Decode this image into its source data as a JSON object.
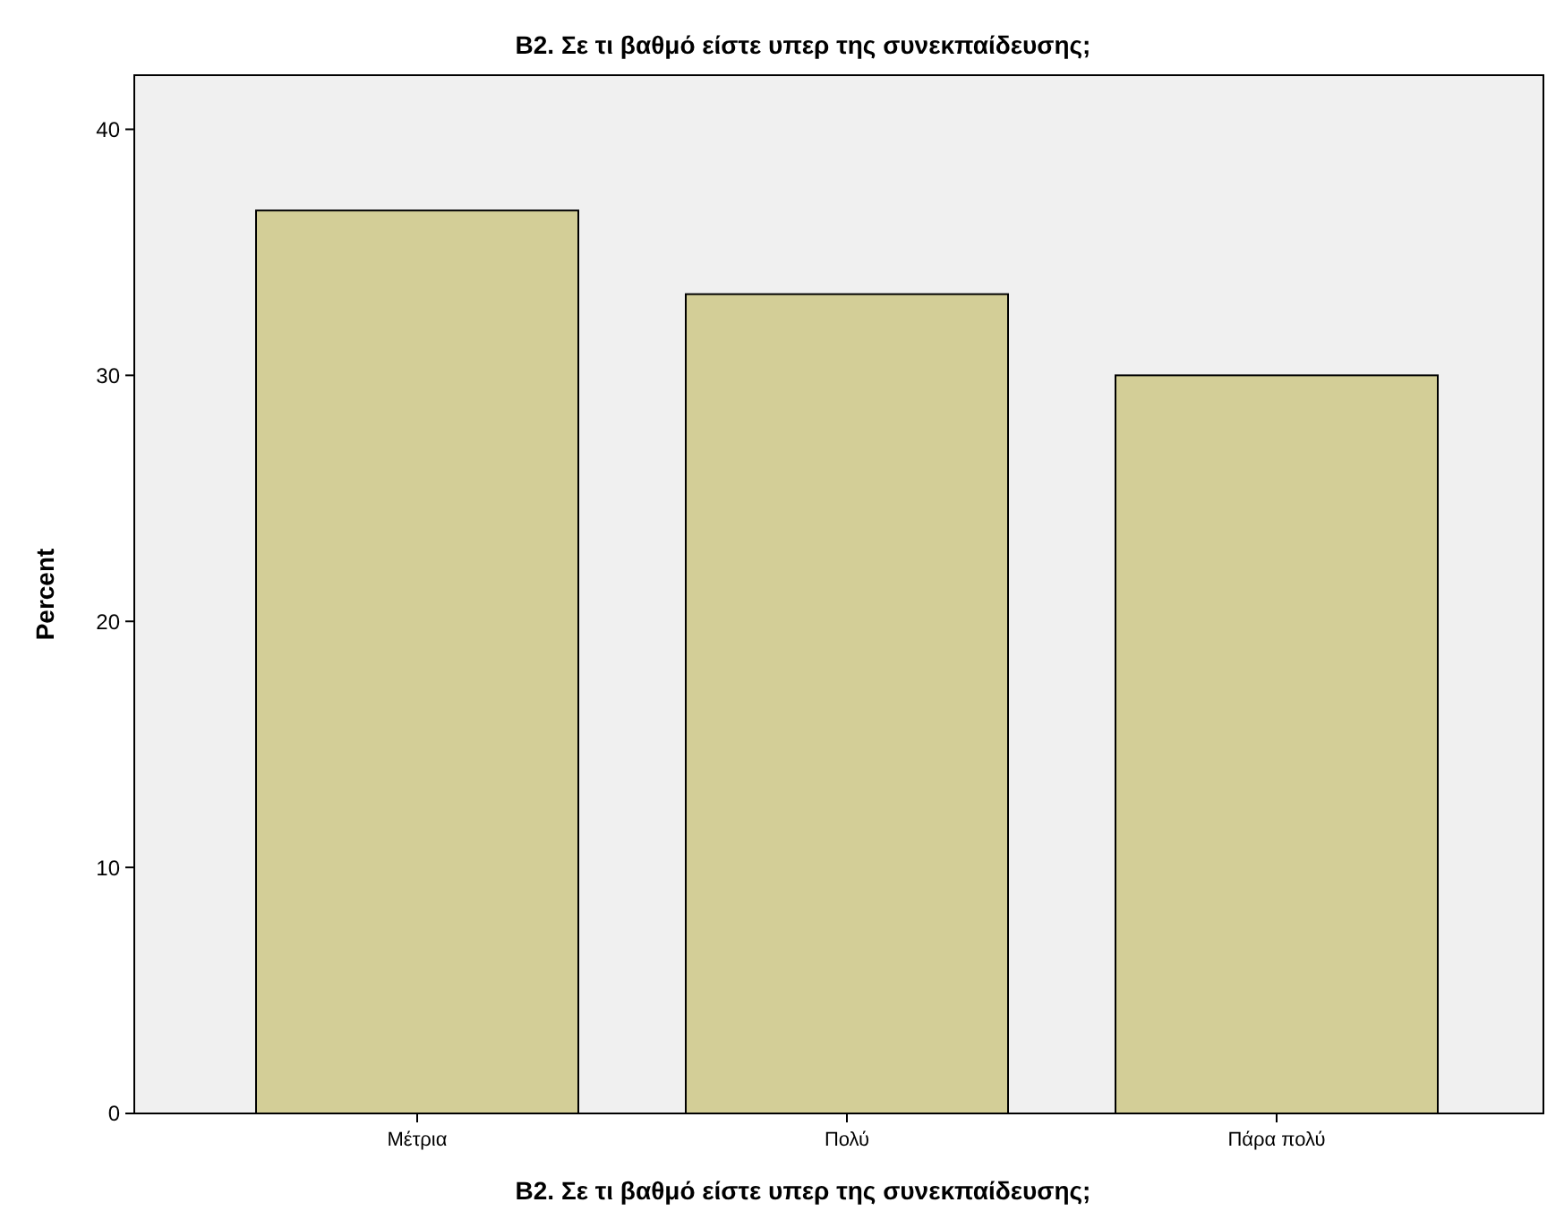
{
  "chart_data": {
    "type": "bar",
    "title": "B2. Σε τι βαθμό είστε υπερ της συνεκπαίδευσης;",
    "xlabel": "B2. Σε τι βαθμό είστε υπερ της συνεκπαίδευσης;",
    "ylabel": "Percent",
    "categories": [
      "Μέτρια",
      "Πολύ",
      "Πάρα πολύ"
    ],
    "values": [
      36.7,
      33.3,
      30.0
    ],
    "color": "#d3ce97",
    "ylim": [
      0,
      42.2
    ],
    "yticks": [
      0,
      10,
      20,
      30,
      40
    ],
    "grid": false
  }
}
